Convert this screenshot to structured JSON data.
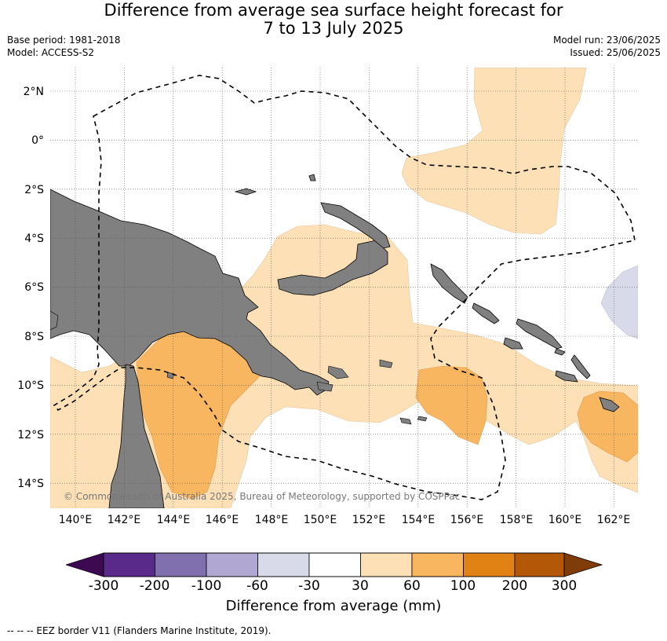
{
  "title_line1": "Difference from average sea surface height forecast for",
  "title_line2": "7 to 13 July 2025",
  "base_period": "Base period: 1981-2018",
  "model": "Model: ACCESS-S2",
  "model_run": "Model run: 23/06/2025",
  "issued": "Issued: 25/06/2025",
  "lat_labels": [
    "2°N",
    "0°",
    "2°S",
    "4°S",
    "6°S",
    "8°S",
    "10°S",
    "12°S",
    "14°S"
  ],
  "lon_labels": [
    "140°E",
    "142°E",
    "144°E",
    "146°E",
    "148°E",
    "150°E",
    "152°E",
    "154°E",
    "156°E",
    "158°E",
    "160°E",
    "162°E"
  ],
  "copyright": "© Commonwealth of Australia 2025, Bureau of Meteorology, supported by COSPPac",
  "colorbar": {
    "title": "Difference from average (mm)",
    "ticks": [
      "-300",
      "-200",
      "-100",
      "-60",
      "-30",
      "30",
      "60",
      "100",
      "200",
      "300"
    ],
    "colors": [
      "#3d0a52",
      "#5a2a8a",
      "#8070ae",
      "#b0a8d2",
      "#d8d9e9",
      "#ffffff",
      "#fde0b6",
      "#f8b660",
      "#e08214",
      "#b35806",
      "#7f3b08"
    ]
  },
  "legend_note": "-- -- -- EEZ border V11 (Flanders Marine Institute, 2019).",
  "map_colors": {
    "land": "#808080",
    "level_30_60": "#fde0b6",
    "level_60_100": "#f8b660",
    "level_neg30_neg60": "#d8d9e9",
    "eez_border": "#000000"
  }
}
